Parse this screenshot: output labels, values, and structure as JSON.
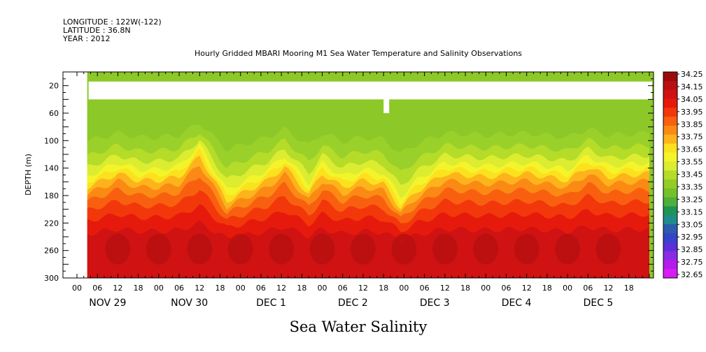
{
  "header": {
    "longitude": "LONGITUDE : 122W(-122)",
    "latitude": "LATITUDE : 36.8N",
    "year": "YEAR : 2012"
  },
  "chart_data": {
    "type": "heatmap",
    "title": "Hourly Gridded MBARI Mooring M1 Sea Water Temperature and Salinity Observations",
    "xlabel": "Sea Water Salinity",
    "ylabel": "DEPTH (m)",
    "x_range_hours": [
      0,
      168
    ],
    "hour_tick_labels": [
      "00",
      "06",
      "12",
      "18",
      "00",
      "06",
      "12",
      "18",
      "00",
      "06",
      "12",
      "18",
      "00",
      "06",
      "12",
      "18",
      "00",
      "06",
      "12",
      "18",
      "00",
      "06",
      "12",
      "18",
      "00",
      "06",
      "12",
      "18"
    ],
    "day_labels": [
      "NOV 29",
      "NOV 30",
      "DEC  1",
      "DEC  2",
      "DEC  3",
      "DEC  4",
      "DEC  5"
    ],
    "ylim": [
      300,
      0
    ],
    "y_tick_labels": [
      "20",
      "60",
      "100",
      "140",
      "180",
      "220",
      "260",
      "300"
    ],
    "y_tick_values": [
      20,
      60,
      100,
      140,
      180,
      220,
      260,
      300
    ],
    "data_start_hour": 3,
    "gap_depths": [
      14,
      40
    ],
    "colorbar": {
      "labels": [
        "34.25",
        "34.15",
        "34.05",
        "33.95",
        "33.85",
        "33.75",
        "33.65",
        "33.55",
        "33.45",
        "33.35",
        "33.25",
        "33.15",
        "33.05",
        "32.95",
        "32.85",
        "32.75",
        "32.65"
      ],
      "colors": [
        "#9a0a0a",
        "#b81010",
        "#d01212",
        "#e61a0c",
        "#f2380a",
        "#f86010",
        "#fb8a14",
        "#fdb41c",
        "#fce21e",
        "#f4f42a",
        "#dcec30",
        "#b4dc28",
        "#94cc26",
        "#74c02c",
        "#4cb03a",
        "#1e9454",
        "#1e8c8c",
        "#2a5cac",
        "#3444c8",
        "#5a30d8",
        "#8a2ce4",
        "#b21cec",
        "#d81cf4"
      ]
    },
    "thermocline_depth_m": [
      {
        "hour": 3,
        "value": 160
      },
      {
        "hour": 12,
        "value": 140
      },
      {
        "hour": 18,
        "value": 150
      },
      {
        "hour": 24,
        "value": 150
      },
      {
        "hour": 30,
        "value": 145
      },
      {
        "hour": 36,
        "value": 115
      },
      {
        "hour": 44,
        "value": 180
      },
      {
        "hour": 56,
        "value": 150
      },
      {
        "hour": 61,
        "value": 130
      },
      {
        "hour": 68,
        "value": 170
      },
      {
        "hour": 72,
        "value": 140
      },
      {
        "hour": 78,
        "value": 160
      },
      {
        "hour": 84,
        "value": 150
      },
      {
        "hour": 90,
        "value": 155
      },
      {
        "hour": 95,
        "value": 190
      },
      {
        "hour": 100,
        "value": 165
      },
      {
        "hour": 108,
        "value": 140
      },
      {
        "hour": 120,
        "value": 145
      },
      {
        "hour": 132,
        "value": 140
      },
      {
        "hour": 144,
        "value": 150
      },
      {
        "hour": 150,
        "value": 130
      },
      {
        "hour": 156,
        "value": 145
      },
      {
        "hour": 168,
        "value": 140
      }
    ]
  }
}
